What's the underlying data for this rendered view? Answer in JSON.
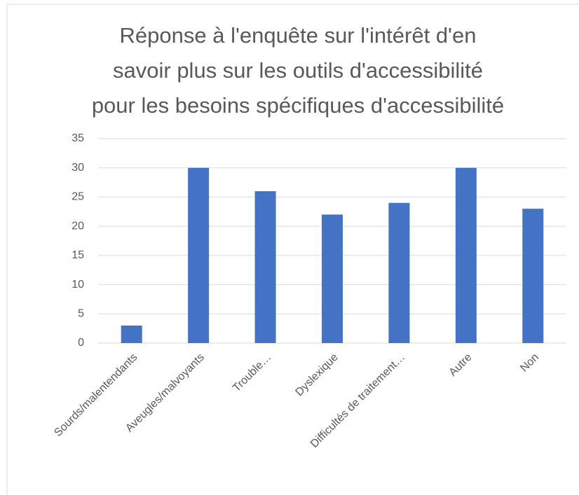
{
  "chart_data": {
    "type": "bar",
    "title": [
      "Réponse à l'enquête sur l'intérêt d'en",
      "savoir plus sur les outils d'accessibilité",
      "pour les besoins spécifiques d'accessibilité"
    ],
    "categories": [
      "Sourds/malentendants",
      "Aveugles/malvoyants",
      "Trouble…",
      "Dyslexique",
      "Difficultés de traitement…",
      "Autre",
      "Non"
    ],
    "values": [
      3,
      30,
      26,
      22,
      24,
      30,
      23
    ],
    "color": "#4472c4",
    "ylim": [
      0,
      35
    ],
    "yticks": [
      0,
      5,
      10,
      15,
      20,
      25,
      30,
      35
    ],
    "grid": true
  }
}
